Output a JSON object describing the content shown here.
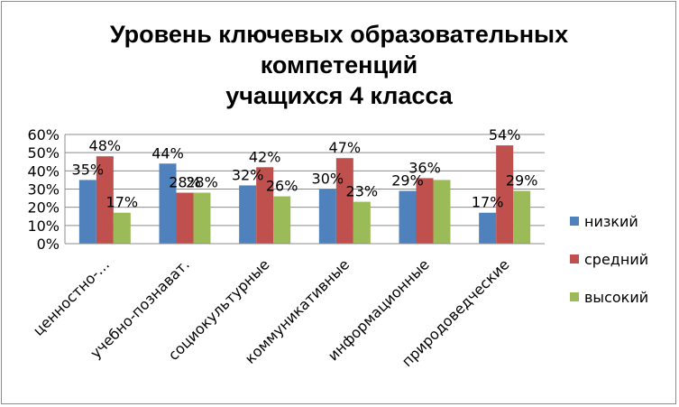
{
  "chart_data": {
    "type": "bar",
    "title_lines": [
      "Уровень ключевых образовательных",
      "компетенций",
      "учащихся 4 класса"
    ],
    "categories": [
      "ценностно-…",
      "учебно-познават.",
      "социокультурные",
      "коммуникативные",
      "информационные",
      "природоведческие"
    ],
    "series": [
      {
        "name": "низкий",
        "color": "#4f81bd",
        "values": [
          35,
          44,
          32,
          30,
          29,
          17
        ],
        "labels": [
          "35%",
          "44%",
          "32%",
          "30%",
          "29%",
          "17%"
        ]
      },
      {
        "name": "средний",
        "color": "#c0504d",
        "values": [
          48,
          28,
          42,
          47,
          36,
          54
        ],
        "labels": [
          "48%",
          "28%",
          "42%",
          "47%",
          "36%",
          "54%"
        ]
      },
      {
        "name": "высокий",
        "color": "#9bbb59",
        "values": [
          17,
          28,
          26,
          23,
          35,
          29
        ],
        "labels": [
          "17%",
          "28%",
          "26%",
          "23%",
          "",
          "29%"
        ]
      }
    ],
    "y_ticks": [
      "0%",
      "10%",
      "20%",
      "30%",
      "40%",
      "50%",
      "60%"
    ],
    "ylim": [
      0,
      60
    ],
    "grid": true,
    "legend_position": "right"
  }
}
